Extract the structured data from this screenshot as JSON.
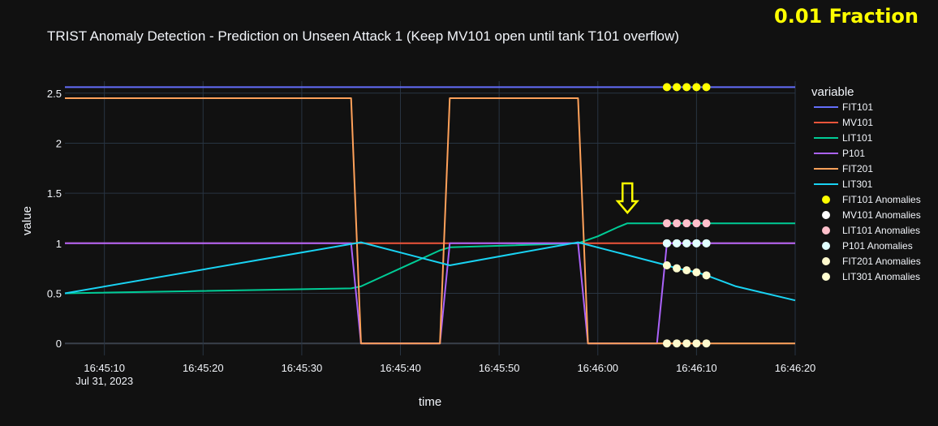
{
  "corner_label": "0.01 Fraction",
  "chart_data": {
    "type": "line",
    "title": "TRIST Anomaly Detection - Prediction on Unseen Attack 1 (Keep MV101 open until tank T101 overflow)",
    "xlabel": "time",
    "ylabel": "value",
    "x_date": "Jul 31, 2023",
    "x_range": [
      "16:45:06",
      "16:46:20"
    ],
    "ylim": [
      -0.12,
      2.62
    ],
    "x_ticks": [
      "16:45:10",
      "16:45:20",
      "16:45:30",
      "16:45:40",
      "16:45:50",
      "16:46:00",
      "16:46:10",
      "16:46:20"
    ],
    "y_ticks": [
      "0",
      "0.5",
      "1",
      "1.5",
      "2",
      "2.5"
    ],
    "y_tick_values": [
      0,
      0.5,
      1,
      1.5,
      2,
      2.5
    ],
    "grid": true,
    "legend_title": "variable",
    "legend_position": "right",
    "series": [
      {
        "name": "FIT101",
        "color": "#636efa",
        "x": [
          "16:45:06",
          "16:46:20"
        ],
        "y": [
          2.56,
          2.56
        ]
      },
      {
        "name": "MV101",
        "color": "#ef553b",
        "x": [
          "16:45:06",
          "16:46:20"
        ],
        "y": [
          1,
          1
        ]
      },
      {
        "name": "LIT101",
        "color": "#00cc96",
        "x": [
          "16:45:06",
          "16:45:35",
          "16:45:36",
          "16:45:44",
          "16:45:45",
          "16:45:58",
          "16:46:00",
          "16:46:02",
          "16:46:03",
          "16:46:20"
        ],
        "y": [
          0.5,
          0.55,
          0.57,
          0.93,
          0.96,
          1.0,
          1.07,
          1.16,
          1.2,
          1.2
        ]
      },
      {
        "name": "P101",
        "color": "#ab63fa",
        "x": [
          "16:45:06",
          "16:45:35",
          "16:45:36",
          "16:45:44",
          "16:45:45",
          "16:45:58",
          "16:45:59",
          "16:46:06",
          "16:46:07",
          "16:46:20"
        ],
        "y": [
          1,
          1,
          0,
          0,
          1,
          1,
          0,
          0,
          1,
          1
        ]
      },
      {
        "name": "FIT201",
        "color": "#ffa15a",
        "x": [
          "16:45:06",
          "16:45:35",
          "16:45:36",
          "16:45:44",
          "16:45:45",
          "16:45:58",
          "16:45:59",
          "16:46:20"
        ],
        "y": [
          2.45,
          2.45,
          0,
          0,
          2.45,
          2.45,
          0,
          0
        ]
      },
      {
        "name": "LIT301",
        "color": "#19d3f3",
        "x": [
          "16:45:06",
          "16:45:36",
          "16:45:45",
          "16:45:58",
          "16:46:07",
          "16:46:08",
          "16:46:09",
          "16:46:10",
          "16:46:11",
          "16:46:14",
          "16:46:20"
        ],
        "y": [
          0.5,
          1.01,
          0.78,
          1.01,
          0.78,
          0.75,
          0.73,
          0.71,
          0.68,
          0.57,
          0.43
        ]
      }
    ],
    "anomaly_series": [
      {
        "name": "FIT101 Anomalies",
        "color": "#ffff00",
        "x": [
          "16:46:07",
          "16:46:08",
          "16:46:09",
          "16:46:10",
          "16:46:11"
        ],
        "y": [
          2.56,
          2.56,
          2.56,
          2.56,
          2.56
        ]
      },
      {
        "name": "MV101 Anomalies",
        "color": "#ffffff",
        "x": [
          "16:46:07",
          "16:46:08",
          "16:46:09",
          "16:46:10",
          "16:46:11"
        ],
        "y": [
          1,
          1,
          1,
          1,
          1
        ]
      },
      {
        "name": "LIT101 Anomalies",
        "color": "#ffc0cb",
        "x": [
          "16:46:07",
          "16:46:08",
          "16:46:09",
          "16:46:10",
          "16:46:11"
        ],
        "y": [
          1.2,
          1.2,
          1.2,
          1.2,
          1.2
        ]
      },
      {
        "name": "P101 Anomalies",
        "color": "#e0ffff",
        "x": [
          "16:46:07",
          "16:46:08",
          "16:46:09",
          "16:46:10",
          "16:46:11"
        ],
        "y": [
          1,
          1,
          1,
          1,
          1
        ]
      },
      {
        "name": "FIT201 Anomalies",
        "color": "#fffacd",
        "x": [
          "16:46:07",
          "16:46:08",
          "16:46:09",
          "16:46:10",
          "16:46:11"
        ],
        "y": [
          0,
          0,
          0,
          0,
          0
        ]
      },
      {
        "name": "LIT301 Anomalies",
        "color": "#fffdd0",
        "x": [
          "16:46:07",
          "16:46:08",
          "16:46:09",
          "16:46:10",
          "16:46:11"
        ],
        "y": [
          0.78,
          0.75,
          0.73,
          0.71,
          0.68
        ]
      }
    ],
    "annotation": {
      "type": "down-arrow",
      "color": "#ffff00",
      "x": "16:46:03",
      "y": 1.42
    }
  }
}
